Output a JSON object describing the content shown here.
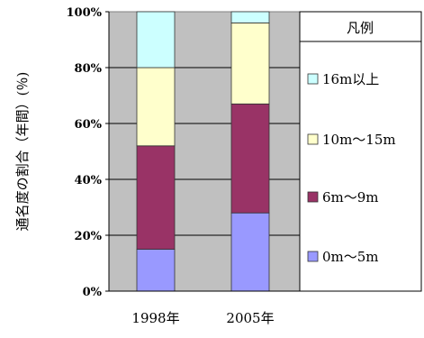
{
  "chart_data": {
    "type": "bar",
    "stacked": true,
    "title": "",
    "xlabel": "",
    "ylabel": "通名度の割合（年間）(％)",
    "categories": [
      "1998年",
      "2005年"
    ],
    "ylim": [
      0,
      100
    ],
    "yticks": [
      "0%",
      "20%",
      "40%",
      "60%",
      "80%",
      "100%"
    ],
    "grid": true,
    "plot_background": "#c0c0c0",
    "legend": {
      "title": "凡例",
      "placement": "right"
    },
    "series": [
      {
        "name": "0m～5m",
        "color": "#9999ff",
        "values": [
          15,
          28
        ]
      },
      {
        "name": "6m～9m",
        "color": "#993366",
        "values": [
          37,
          39
        ]
      },
      {
        "name": "10m～15m",
        "color": "#ffffcc",
        "values": [
          28,
          29
        ]
      },
      {
        "name": "16m以上",
        "color": "#ccffff",
        "values": [
          20,
          4
        ]
      }
    ]
  }
}
